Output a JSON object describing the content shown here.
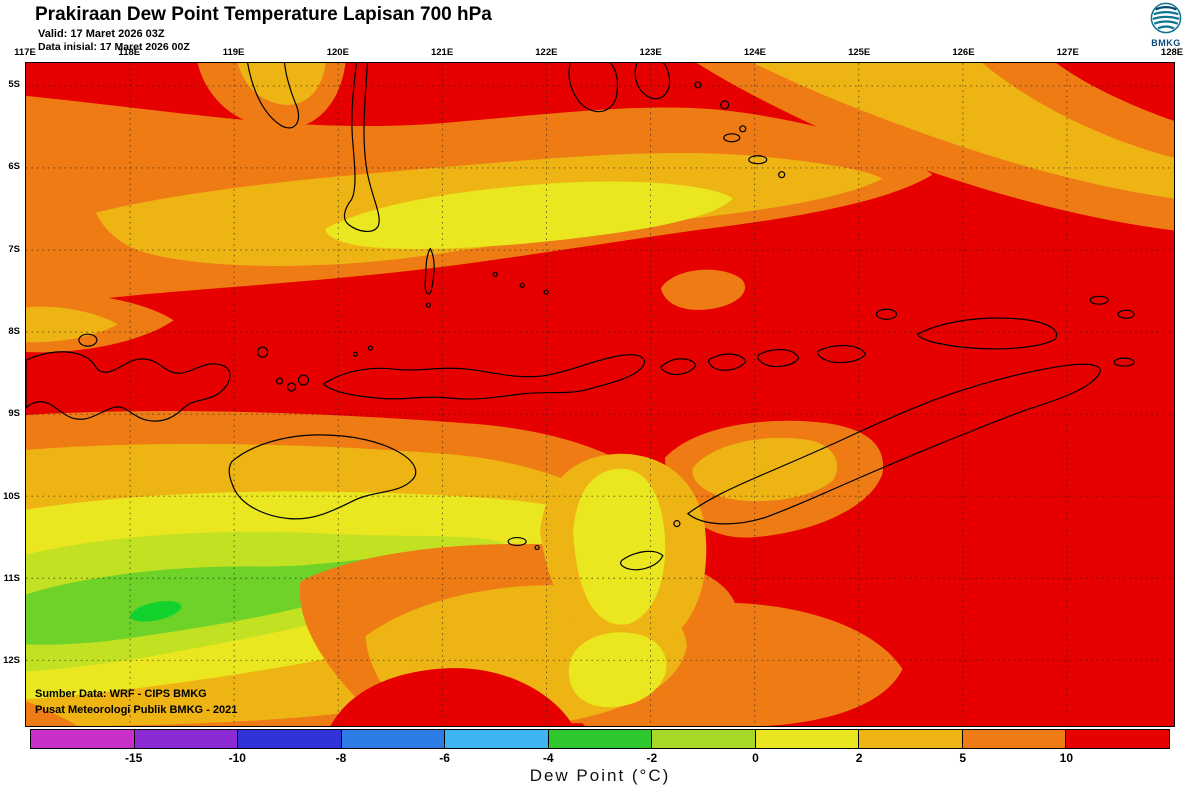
{
  "header": {
    "title": "Prakiraan Dew Point Temperature Lapisan 700 hPa",
    "valid_line": "Valid: 17 Maret 2026 03Z",
    "init_line": "Data inisial: 17 Maret 2026 00Z",
    "logo_text": "BMKG"
  },
  "map": {
    "lon_labels": [
      "117E",
      "118E",
      "119E",
      "120E",
      "121E",
      "122E",
      "123E",
      "124E",
      "125E",
      "126E",
      "127E",
      "128E"
    ],
    "lat_labels": [
      "5S",
      "6S",
      "7S",
      "8S",
      "9S",
      "10S",
      "11S",
      "12S"
    ],
    "credit_line1": "Sumber Data: WRF - CIPS BMKG",
    "credit_line2": "Pusat Meteorologi Publik BMKG - 2021"
  },
  "legend": {
    "title": "Dew Point (°C)",
    "tick_labels": [
      "-15",
      "-10",
      "-8",
      "-6",
      "-4",
      "-2",
      "0",
      "2",
      "5",
      "10"
    ],
    "segments": [
      {
        "range": "below -15",
        "color": "#c92fc9"
      },
      {
        "range": "-15 to -10",
        "color": "#8c2bd4"
      },
      {
        "range": "-10 to -8",
        "color": "#3132d8"
      },
      {
        "range": "-8 to -6",
        "color": "#2e7de6"
      },
      {
        "range": "-6 to -4",
        "color": "#3eb4f0"
      },
      {
        "range": "-4 to -2",
        "color": "#2ec82e"
      },
      {
        "range": "-2 to 0",
        "color": "#a8d827"
      },
      {
        "range": "0 to 2",
        "color": "#e9e621"
      },
      {
        "range": "2 to 5",
        "color": "#eeb414"
      },
      {
        "range": "5 to 10",
        "color": "#ee7b14"
      },
      {
        "range": "above 10",
        "color": "#e60000"
      }
    ]
  }
}
